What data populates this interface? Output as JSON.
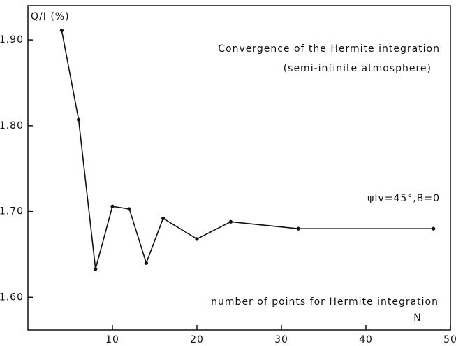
{
  "chart_data": {
    "type": "line",
    "title": "Convergence of the Hermite integration",
    "subtitle": "(semi-infinite atmosphere)",
    "y_label": "Q/I (%)",
    "x_label": "N",
    "annotations": [
      "ψIv=45°,B=0",
      "number of points for Hermite integration"
    ],
    "x": [
      4,
      6,
      8,
      10,
      12,
      14,
      16,
      20,
      24,
      32,
      48
    ],
    "series": [
      {
        "color": "#111111",
        "values": [
          1.911,
          1.807,
          1.633,
          1.706,
          1.703,
          1.64,
          1.692,
          1.668,
          1.688,
          1.68,
          1.68
        ]
      }
    ],
    "xlim": [
      0,
      50
    ],
    "xticks": [
      10,
      20,
      30,
      40,
      50
    ],
    "ylim": [
      1.562,
      1.94
    ],
    "yticks": [
      {
        "value": 1.6,
        "label": "1.60"
      },
      {
        "value": 1.7,
        "label": "1.70"
      },
      {
        "value": 1.8,
        "label": "1.80"
      },
      {
        "value": 1.9,
        "label": "1.90"
      }
    ],
    "grid": false
  }
}
